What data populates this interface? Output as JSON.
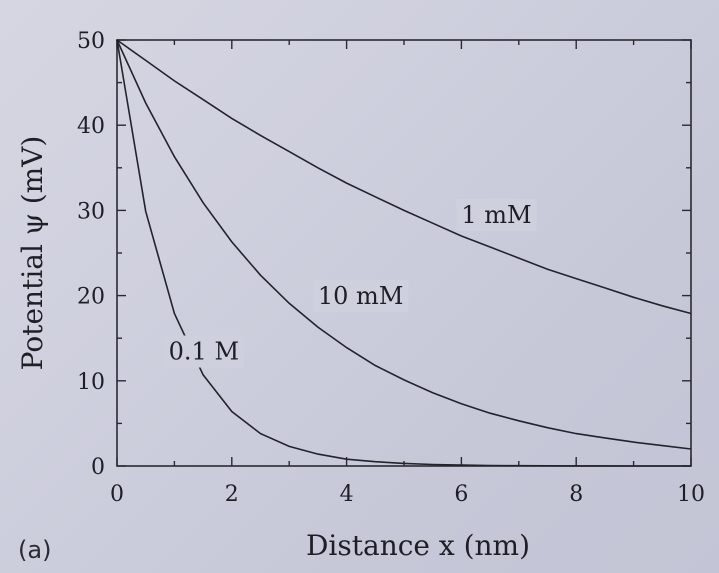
{
  "panel_label": "(a)",
  "chart_data": {
    "type": "line",
    "xlabel": "Distance x (nm)",
    "ylabel": "Potential ψ (mV)",
    "xlim": [
      0,
      10
    ],
    "ylim": [
      0,
      50
    ],
    "xticks": [
      0,
      2,
      4,
      6,
      8,
      10
    ],
    "yticks": [
      0,
      10,
      20,
      30,
      40,
      50
    ],
    "grid": false,
    "x": [
      0,
      0.5,
      1,
      1.5,
      2,
      2.5,
      3,
      3.5,
      4,
      4.5,
      5,
      5.5,
      6,
      6.5,
      7,
      7.5,
      8,
      8.5,
      9,
      9.5,
      10
    ],
    "series": [
      {
        "name": "1 mM",
        "values": [
          50.0,
          47.6,
          45.2,
          43.0,
          40.8,
          38.8,
          36.9,
          35.0,
          33.2,
          31.6,
          30.0,
          28.5,
          27.0,
          25.7,
          24.4,
          23.1,
          22.0,
          20.9,
          19.8,
          18.8,
          17.9
        ]
      },
      {
        "name": "10 mM",
        "values": [
          50.0,
          42.6,
          36.3,
          30.9,
          26.3,
          22.4,
          19.1,
          16.3,
          13.9,
          11.8,
          10.1,
          8.6,
          7.3,
          6.2,
          5.3,
          4.5,
          3.8,
          3.3,
          2.8,
          2.4,
          2.0
        ]
      },
      {
        "name": "0.1 M",
        "values": [
          50.0,
          29.9,
          17.9,
          10.7,
          6.4,
          3.8,
          2.3,
          1.4,
          0.8,
          0.5,
          0.3,
          0.18,
          0.11,
          0.06,
          0.04,
          0.02,
          0.01,
          0.01,
          0.0,
          0.0,
          0.0
        ]
      }
    ],
    "curve_labels": [
      {
        "text": "1 mM",
        "x": 6.0,
        "y": 28.5
      },
      {
        "text": "10 mM",
        "x": 3.5,
        "y": 19.0
      },
      {
        "text": "0.1 M",
        "x": 0.9,
        "y": 12.5
      }
    ]
  }
}
